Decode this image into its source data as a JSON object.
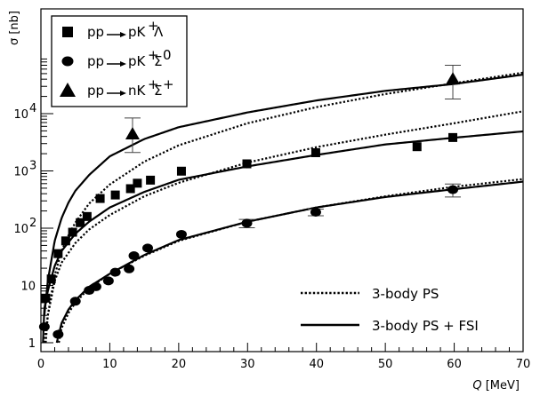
{
  "chart_data": {
    "type": "scatter",
    "title": "",
    "xlabel": "Q",
    "xunit": "[MeV]",
    "ylabel": "σ [nb]",
    "xlim": [
      0,
      70
    ],
    "ylim": [
      1,
      90000
    ],
    "yscale": "log",
    "x_ticks": [
      "0",
      "10",
      "20",
      "30",
      "40",
      "50",
      "60",
      "70"
    ],
    "y_ticks": [
      {
        "value": 1,
        "label": "1"
      },
      {
        "value": 10,
        "label": "10"
      },
      {
        "value": 100,
        "base": "10",
        "exp": "2"
      },
      {
        "value": 1000,
        "base": "10",
        "exp": "3"
      },
      {
        "value": 10000,
        "base": "10",
        "exp": "4"
      }
    ],
    "grid": false,
    "legend_top": {
      "placement": "top-left",
      "entries": [
        {
          "marker": "square",
          "initial": "pp",
          "final": "pK",
          "sup1": "+",
          "particle": "Λ",
          "sup2": ""
        },
        {
          "marker": "circle",
          "initial": "pp",
          "final": "pK",
          "sup1": "+",
          "particle": "Σ",
          "sup2": "0"
        },
        {
          "marker": "triangle",
          "initial": "pp",
          "final": "nK",
          "sup1": "+",
          "particle": "Σ",
          "sup2": "+"
        }
      ]
    },
    "legend_bottom": {
      "placement": "bottom-right",
      "entries": [
        {
          "style": "dotted",
          "label": "3-body PS"
        },
        {
          "style": "solid",
          "label": "3-body PS + FSI"
        }
      ]
    },
    "series": [
      {
        "marker": "square",
        "points": [
          {
            "x": 0.7,
            "y": 6,
            "err": 0.7
          },
          {
            "x": 1.5,
            "y": 13,
            "err": 1.5
          },
          {
            "x": 2.5,
            "y": 36,
            "err": 4
          },
          {
            "x": 3.6,
            "y": 60,
            "err": 6
          },
          {
            "x": 4.6,
            "y": 85,
            "err": 8
          },
          {
            "x": 5.7,
            "y": 125,
            "err": 12
          },
          {
            "x": 6.7,
            "y": 160,
            "err": 15
          },
          {
            "x": 8.6,
            "y": 330,
            "err": 25
          },
          {
            "x": 10.8,
            "y": 380,
            "err": 30
          },
          {
            "x": 13.0,
            "y": 490,
            "err": 40
          },
          {
            "x": 14.0,
            "y": 610,
            "err": 50
          },
          {
            "x": 15.9,
            "y": 690,
            "err": 55
          },
          {
            "x": 20.4,
            "y": 990,
            "err": 80
          },
          {
            "x": 29.9,
            "y": 1330,
            "err": 220
          },
          {
            "x": 39.9,
            "y": 2080,
            "err": 200
          },
          {
            "x": 54.6,
            "y": 2650,
            "err": 150
          },
          {
            "x": 59.8,
            "y": 3830,
            "err": 450
          }
        ]
      },
      {
        "marker": "circle",
        "points": [
          {
            "x": 0.5,
            "y": 1.9,
            "err": 0.25
          },
          {
            "x": 2.5,
            "y": 1.4,
            "err": 0.3
          },
          {
            "x": 5.0,
            "y": 5.3,
            "err": 0.6
          },
          {
            "x": 7.0,
            "y": 8.2,
            "err": 1.0
          },
          {
            "x": 8.0,
            "y": 9.5,
            "err": 1.1
          },
          {
            "x": 9.8,
            "y": 12,
            "err": 1.5
          },
          {
            "x": 10.8,
            "y": 17,
            "err": 2
          },
          {
            "x": 12.8,
            "y": 19.5,
            "err": 2.2
          },
          {
            "x": 13.5,
            "y": 33,
            "err": 3.5
          },
          {
            "x": 15.5,
            "y": 45,
            "err": 4.5
          },
          {
            "x": 20.4,
            "y": 78,
            "err": 8
          },
          {
            "x": 29.9,
            "y": 122,
            "err": 20
          },
          {
            "x": 39.9,
            "y": 190,
            "err": 25
          },
          {
            "x": 59.8,
            "y": 470,
            "err": 120
          }
        ]
      },
      {
        "marker": "triangle",
        "points": [
          {
            "x": 13.3,
            "y": 4400,
            "err_low": 2300,
            "err_high": 4000
          },
          {
            "x": 59.8,
            "y": 40000,
            "err_low": 22000,
            "err_high": 30000
          }
        ]
      }
    ],
    "curves": [
      {
        "style": "solid",
        "x0": 0.5,
        "points": [
          [
            0.5,
            3
          ],
          [
            1,
            12
          ],
          [
            2,
            60
          ],
          [
            3,
            150
          ],
          [
            4,
            280
          ],
          [
            5,
            450
          ],
          [
            7,
            850
          ],
          [
            10,
            1800
          ],
          [
            15,
            3600
          ],
          [
            20,
            5800
          ],
          [
            30,
            10500
          ],
          [
            40,
            17000
          ],
          [
            50,
            25000
          ],
          [
            60,
            33000
          ],
          [
            70,
            48000
          ]
        ]
      },
      {
        "style": "dotted",
        "x0": 0.7,
        "points": [
          [
            0.7,
            1
          ],
          [
            1,
            3
          ],
          [
            2,
            15
          ],
          [
            3,
            40
          ],
          [
            4,
            75
          ],
          [
            5,
            125
          ],
          [
            7,
            270
          ],
          [
            10,
            580
          ],
          [
            15,
            1450
          ],
          [
            20,
            2800
          ],
          [
            30,
            6800
          ],
          [
            40,
            13000
          ],
          [
            50,
            22000
          ],
          [
            60,
            34000
          ],
          [
            70,
            52000
          ]
        ]
      },
      {
        "style": "solid",
        "x0": 0.3,
        "points": [
          [
            0.3,
            1
          ],
          [
            0.5,
            4
          ],
          [
            1,
            8
          ],
          [
            2,
            22
          ],
          [
            3,
            40
          ],
          [
            5,
            80
          ],
          [
            7,
            130
          ],
          [
            10,
            230
          ],
          [
            15,
            430
          ],
          [
            20,
            700
          ],
          [
            30,
            1200
          ],
          [
            40,
            1900
          ],
          [
            50,
            2900
          ],
          [
            60,
            3800
          ],
          [
            70,
            4900
          ]
        ]
      },
      {
        "style": "dotted",
        "x0": 0.5,
        "points": [
          [
            0.5,
            1
          ],
          [
            1,
            3
          ],
          [
            2,
            12
          ],
          [
            3,
            25
          ],
          [
            5,
            55
          ],
          [
            7,
            95
          ],
          [
            10,
            170
          ],
          [
            15,
            360
          ],
          [
            20,
            620
          ],
          [
            30,
            1400
          ],
          [
            40,
            2600
          ],
          [
            50,
            4300
          ],
          [
            60,
            6800
          ],
          [
            70,
            11000
          ]
        ]
      },
      {
        "style": "solid",
        "x0": 2.3,
        "points": [
          [
            2.3,
            1
          ],
          [
            3,
            2.2
          ],
          [
            4,
            3.8
          ],
          [
            5,
            5.5
          ],
          [
            7,
            9.5
          ],
          [
            10,
            16
          ],
          [
            15,
            34
          ],
          [
            20,
            62
          ],
          [
            30,
            130
          ],
          [
            40,
            230
          ],
          [
            50,
            350
          ],
          [
            60,
            480
          ],
          [
            70,
            650
          ]
        ]
      },
      {
        "style": "dotted",
        "x0": 2.6,
        "points": [
          [
            2.6,
            1
          ],
          [
            3,
            1.8
          ],
          [
            4,
            3.3
          ],
          [
            5,
            5
          ],
          [
            7,
            9
          ],
          [
            10,
            16
          ],
          [
            15,
            33
          ],
          [
            20,
            60
          ],
          [
            30,
            130
          ],
          [
            40,
            230
          ],
          [
            50,
            360
          ],
          [
            60,
            530
          ],
          [
            70,
            720
          ]
        ]
      }
    ]
  }
}
